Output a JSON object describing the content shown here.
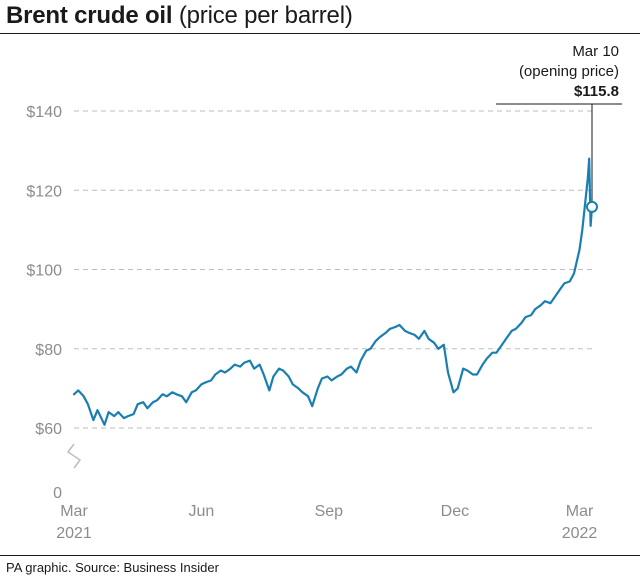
{
  "header": {
    "title_bold": "Brent crude oil",
    "title_light": "(price per barrel)"
  },
  "footer": {
    "source": "PA graphic. Source: Business Insider"
  },
  "colors": {
    "line": "#1a7fb0",
    "grid": "#bdbdbd",
    "tick_text": "#8c8c8c",
    "rule": "#1a1a1a"
  },
  "chart_data": {
    "type": "line",
    "title": "Brent crude oil (price per barrel)",
    "xlabel": "",
    "ylabel": "",
    "ylim": [
      0,
      140
    ],
    "axis_break_between": [
      0,
      60
    ],
    "grid": true,
    "y_ticks": [
      {
        "value": 140,
        "label": "$140"
      },
      {
        "value": 120,
        "label": "$120"
      },
      {
        "value": 100,
        "label": "$100"
      },
      {
        "value": 80,
        "label": "$80"
      },
      {
        "value": 60,
        "label": "$60"
      },
      {
        "value": 0,
        "label": "0"
      }
    ],
    "x_ticks": [
      {
        "date": "2021-03-01",
        "label": "Mar",
        "sublabel": "2021"
      },
      {
        "date": "2021-06-01",
        "label": "Jun",
        "sublabel": ""
      },
      {
        "date": "2021-09-01",
        "label": "Sep",
        "sublabel": ""
      },
      {
        "date": "2021-12-01",
        "label": "Dec",
        "sublabel": ""
      },
      {
        "date": "2022-03-01",
        "label": "Mar",
        "sublabel": "2022"
      }
    ],
    "annotation": {
      "date": "2022-03-10",
      "value": 115.8,
      "line1": "Mar 10",
      "line2": "(opening price)",
      "value_label": "$115.8"
    },
    "series": [
      {
        "x": [
          "2021-03-01",
          "2021-03-04",
          "2021-03-08",
          "2021-03-11",
          "2021-03-15",
          "2021-03-18",
          "2021-03-23",
          "2021-03-26",
          "2021-03-30",
          "2021-04-02",
          "2021-04-06",
          "2021-04-09",
          "2021-04-13",
          "2021-04-16",
          "2021-04-20",
          "2021-04-23",
          "2021-04-27",
          "2021-04-30",
          "2021-05-04",
          "2021-05-07",
          "2021-05-11",
          "2021-05-14",
          "2021-05-18",
          "2021-05-21",
          "2021-05-25",
          "2021-05-28",
          "2021-06-01",
          "2021-06-04",
          "2021-06-08",
          "2021-06-11",
          "2021-06-15",
          "2021-06-18",
          "2021-06-22",
          "2021-06-25",
          "2021-06-29",
          "2021-07-02",
          "2021-07-06",
          "2021-07-09",
          "2021-07-13",
          "2021-07-16",
          "2021-07-20",
          "2021-07-23",
          "2021-07-27",
          "2021-07-30",
          "2021-08-03",
          "2021-08-06",
          "2021-08-10",
          "2021-08-13",
          "2021-08-17",
          "2021-08-20",
          "2021-08-24",
          "2021-08-27",
          "2021-08-31",
          "2021-09-03",
          "2021-09-07",
          "2021-09-10",
          "2021-09-14",
          "2021-09-17",
          "2021-09-21",
          "2021-09-24",
          "2021-09-28",
          "2021-10-01",
          "2021-10-05",
          "2021-10-08",
          "2021-10-12",
          "2021-10-15",
          "2021-10-19",
          "2021-10-22",
          "2021-10-26",
          "2021-10-29",
          "2021-11-02",
          "2021-11-05",
          "2021-11-09",
          "2021-11-12",
          "2021-11-16",
          "2021-11-19",
          "2021-11-23",
          "2021-11-26",
          "2021-11-30",
          "2021-12-03",
          "2021-12-07",
          "2021-12-10",
          "2021-12-14",
          "2021-12-17",
          "2021-12-21",
          "2021-12-24",
          "2021-12-28",
          "2021-12-31",
          "2022-01-04",
          "2022-01-07",
          "2022-01-11",
          "2022-01-14",
          "2022-01-18",
          "2022-01-21",
          "2022-01-25",
          "2022-01-28",
          "2022-02-01",
          "2022-02-04",
          "2022-02-08",
          "2022-02-11",
          "2022-02-15",
          "2022-02-18",
          "2022-02-22",
          "2022-02-25",
          "2022-03-01",
          "2022-03-03",
          "2022-03-07",
          "2022-03-08",
          "2022-03-09",
          "2022-03-10"
        ],
        "values": [
          68.5,
          69.5,
          68.0,
          66.0,
          62.0,
          64.5,
          60.8,
          64.0,
          63.0,
          64.0,
          62.5,
          63.0,
          63.5,
          66.0,
          66.5,
          65.0,
          66.5,
          67.0,
          68.5,
          68.0,
          69.0,
          68.5,
          68.0,
          66.5,
          69.0,
          69.5,
          71.0,
          71.5,
          72.0,
          73.5,
          74.5,
          74.0,
          75.0,
          76.0,
          75.5,
          76.5,
          77.0,
          75.0,
          76.0,
          73.5,
          69.5,
          73.0,
          75.0,
          74.5,
          73.0,
          71.0,
          70.0,
          69.0,
          68.0,
          65.5,
          70.0,
          72.5,
          73.0,
          72.0,
          73.0,
          73.5,
          75.0,
          75.5,
          74.0,
          77.0,
          79.5,
          80.0,
          82.0,
          83.0,
          84.0,
          85.0,
          85.5,
          86.0,
          84.5,
          84.0,
          83.5,
          82.5,
          84.5,
          82.5,
          81.5,
          80.0,
          81.0,
          74.0,
          69.0,
          70.0,
          75.0,
          74.5,
          73.5,
          73.5,
          76.0,
          77.5,
          79.0,
          79.0,
          81.0,
          82.5,
          84.5,
          85.0,
          86.5,
          88.0,
          88.5,
          90.0,
          91.0,
          92.0,
          91.5,
          93.0,
          95.0,
          96.5,
          97.0,
          99.0,
          105.0,
          110.0,
          123.0,
          128.0,
          111.0,
          115.8
        ]
      }
    ]
  }
}
